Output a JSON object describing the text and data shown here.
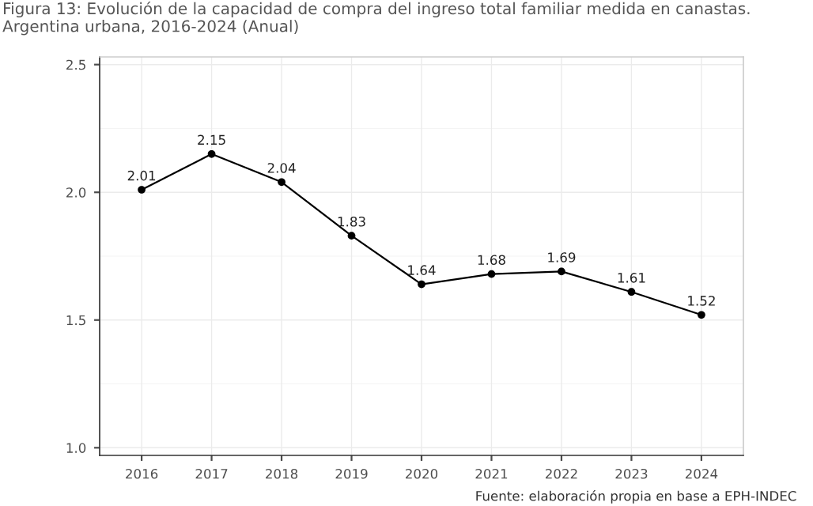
{
  "chart_data": {
    "type": "line",
    "title": "Figura 13: Evolución de la capacidad de compra del ingreso total familiar medida en canastas. Argentina urbana, 2016-2024 (Anual)",
    "categories": [
      "2016",
      "2017",
      "2018",
      "2019",
      "2020",
      "2021",
      "2022",
      "2023",
      "2024"
    ],
    "series": [
      {
        "color": "#000000",
        "values": [
          2.01,
          2.15,
          2.04,
          1.83,
          1.64,
          1.68,
          1.69,
          1.61,
          1.52
        ]
      }
    ],
    "ylim": [
      0.97,
      2.53
    ],
    "yticks": [
      {
        "value": 1.0,
        "label": "1.0"
      },
      {
        "value": 1.5,
        "label": "1.5"
      },
      {
        "value": 2.0,
        "label": "2.0"
      },
      {
        "value": 2.5,
        "label": "2.5"
      }
    ],
    "grid": true,
    "marker": "circle",
    "line_style": "solid",
    "data_labels": true,
    "legend": false,
    "annotations": [
      "Fuente: elaboración propia en base a EPH-INDEC"
    ]
  }
}
